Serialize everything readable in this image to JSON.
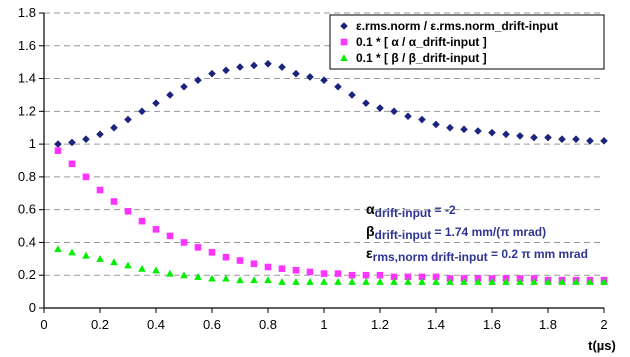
{
  "chart_data": {
    "type": "scatter",
    "xlabel": "t(µs)",
    "ylabel": "",
    "xlim": [
      0,
      2
    ],
    "ylim": [
      0,
      1.8
    ],
    "xticks": [
      "0",
      "0.2",
      "0.4",
      "0.6",
      "0.8",
      "1",
      "1.2",
      "1.4",
      "1.6",
      "1.8",
      "2"
    ],
    "yticks": [
      "0",
      "0.2",
      "0.4",
      "0.6",
      "0.8",
      "1",
      "1.2",
      "1.4",
      "1.6",
      "1.8"
    ],
    "grid": "horizontal dashed",
    "legend_position": "top-right",
    "series": [
      {
        "name": "ε.rms.norm / ε.rms.norm_drift-input",
        "marker": "diamond",
        "color": "#1a237e",
        "points": [
          [
            0.05,
            1.0
          ],
          [
            0.1,
            1.01
          ],
          [
            0.15,
            1.03
          ],
          [
            0.2,
            1.06
          ],
          [
            0.25,
            1.1
          ],
          [
            0.3,
            1.15
          ],
          [
            0.35,
            1.2
          ],
          [
            0.4,
            1.25
          ],
          [
            0.45,
            1.3
          ],
          [
            0.5,
            1.35
          ],
          [
            0.55,
            1.39
          ],
          [
            0.6,
            1.43
          ],
          [
            0.65,
            1.45
          ],
          [
            0.7,
            1.47
          ],
          [
            0.75,
            1.48
          ],
          [
            0.8,
            1.49
          ],
          [
            0.85,
            1.47
          ],
          [
            0.9,
            1.43
          ],
          [
            0.95,
            1.41
          ],
          [
            1.0,
            1.39
          ],
          [
            1.05,
            1.35
          ],
          [
            1.1,
            1.3
          ],
          [
            1.15,
            1.25
          ],
          [
            1.2,
            1.22
          ],
          [
            1.25,
            1.2
          ],
          [
            1.3,
            1.17
          ],
          [
            1.35,
            1.15
          ],
          [
            1.4,
            1.12
          ],
          [
            1.45,
            1.1
          ],
          [
            1.5,
            1.09
          ],
          [
            1.55,
            1.08
          ],
          [
            1.6,
            1.07
          ],
          [
            1.65,
            1.06
          ],
          [
            1.7,
            1.05
          ],
          [
            1.75,
            1.04
          ],
          [
            1.8,
            1.04
          ],
          [
            1.85,
            1.03
          ],
          [
            1.9,
            1.03
          ],
          [
            1.95,
            1.02
          ],
          [
            2.0,
            1.02
          ]
        ]
      },
      {
        "name": "0.1 * [ α / α_drift-input ]",
        "marker": "square",
        "color": "#ff33ff",
        "points": [
          [
            0.05,
            0.96
          ],
          [
            0.1,
            0.88
          ],
          [
            0.15,
            0.8
          ],
          [
            0.2,
            0.72
          ],
          [
            0.25,
            0.65
          ],
          [
            0.3,
            0.59
          ],
          [
            0.35,
            0.53
          ],
          [
            0.4,
            0.48
          ],
          [
            0.45,
            0.44
          ],
          [
            0.5,
            0.4
          ],
          [
            0.55,
            0.37
          ],
          [
            0.6,
            0.34
          ],
          [
            0.65,
            0.31
          ],
          [
            0.7,
            0.29
          ],
          [
            0.75,
            0.27
          ],
          [
            0.8,
            0.25
          ],
          [
            0.85,
            0.24
          ],
          [
            0.9,
            0.23
          ],
          [
            0.95,
            0.22
          ],
          [
            1.0,
            0.21
          ],
          [
            1.05,
            0.21
          ],
          [
            1.1,
            0.2
          ],
          [
            1.15,
            0.2
          ],
          [
            1.2,
            0.2
          ],
          [
            1.25,
            0.19
          ],
          [
            1.3,
            0.19
          ],
          [
            1.35,
            0.19
          ],
          [
            1.4,
            0.19
          ],
          [
            1.45,
            0.18
          ],
          [
            1.5,
            0.18
          ],
          [
            1.55,
            0.18
          ],
          [
            1.6,
            0.18
          ],
          [
            1.65,
            0.18
          ],
          [
            1.7,
            0.18
          ],
          [
            1.75,
            0.18
          ],
          [
            1.8,
            0.17
          ],
          [
            1.85,
            0.17
          ],
          [
            1.9,
            0.17
          ],
          [
            1.95,
            0.17
          ],
          [
            2.0,
            0.17
          ]
        ]
      },
      {
        "name": "0.1 * [ β / β_drift-input ]",
        "marker": "triangle",
        "color": "#00ee00",
        "points": [
          [
            0.05,
            0.36
          ],
          [
            0.1,
            0.34
          ],
          [
            0.15,
            0.32
          ],
          [
            0.2,
            0.3
          ],
          [
            0.25,
            0.28
          ],
          [
            0.3,
            0.26
          ],
          [
            0.35,
            0.24
          ],
          [
            0.4,
            0.23
          ],
          [
            0.45,
            0.21
          ],
          [
            0.5,
            0.2
          ],
          [
            0.55,
            0.19
          ],
          [
            0.6,
            0.18
          ],
          [
            0.65,
            0.18
          ],
          [
            0.7,
            0.17
          ],
          [
            0.75,
            0.17
          ],
          [
            0.8,
            0.17
          ],
          [
            0.85,
            0.16
          ],
          [
            0.9,
            0.16
          ],
          [
            0.95,
            0.16
          ],
          [
            1.0,
            0.16
          ],
          [
            1.05,
            0.16
          ],
          [
            1.1,
            0.16
          ],
          [
            1.15,
            0.16
          ],
          [
            1.2,
            0.16
          ],
          [
            1.25,
            0.16
          ],
          [
            1.3,
            0.16
          ],
          [
            1.35,
            0.16
          ],
          [
            1.4,
            0.16
          ],
          [
            1.45,
            0.16
          ],
          [
            1.5,
            0.16
          ],
          [
            1.55,
            0.16
          ],
          [
            1.6,
            0.16
          ],
          [
            1.65,
            0.16
          ],
          [
            1.7,
            0.16
          ],
          [
            1.75,
            0.16
          ],
          [
            1.8,
            0.16
          ],
          [
            1.85,
            0.16
          ],
          [
            1.9,
            0.16
          ],
          [
            1.95,
            0.16
          ],
          [
            2.0,
            0.16
          ]
        ]
      }
    ],
    "annotations": [
      {
        "symbol": "α",
        "subscript": "drift-input",
        "text": " = -2"
      },
      {
        "symbol": "β",
        "subscript": "drift-input",
        "text": " = 1.74 mm/(π mrad)"
      },
      {
        "symbol": "ε",
        "subscript": "rms,norm",
        "subscript2": "drift-input",
        "text": " = 0.2 π mm mrad"
      }
    ]
  }
}
